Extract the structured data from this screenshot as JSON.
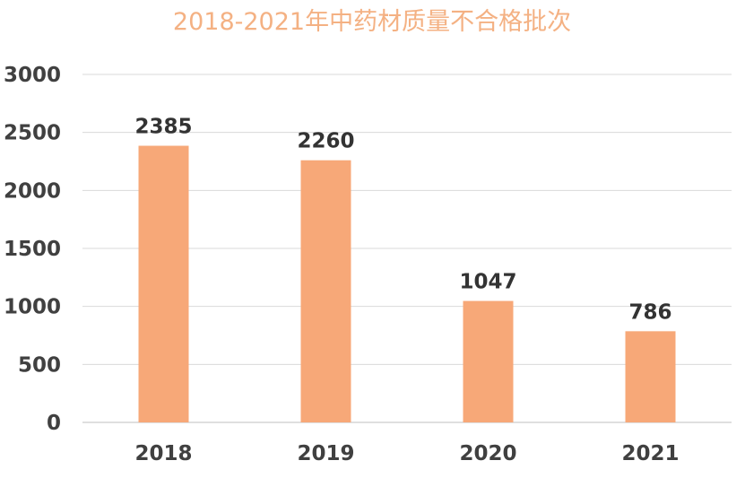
{
  "chart_data": {
    "type": "bar",
    "title": "2018-2021年中药材质量不合格批次",
    "categories": [
      "2018",
      "2019",
      "2020",
      "2021"
    ],
    "values": [
      2385,
      2260,
      1047,
      786
    ],
    "data_labels": [
      "2385",
      "2260",
      "1047",
      "786"
    ],
    "y_ticks": [
      "0",
      "500",
      "1000",
      "1500",
      "2000",
      "2500",
      "3000"
    ],
    "ylim": [
      0,
      3000
    ],
    "xlabel": "",
    "ylabel": "",
    "grid": true,
    "legend": "none",
    "colors": {
      "bar": "#F7A878",
      "title": "#F4B183",
      "grid": "#D9D9D9",
      "axis": "#BFBFBF"
    }
  }
}
